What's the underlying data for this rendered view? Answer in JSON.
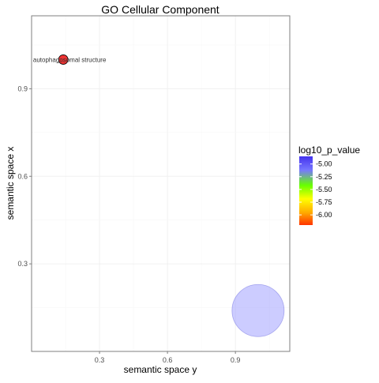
{
  "chart_data": {
    "type": "scatter",
    "title": "GO Cellular Component",
    "xlabel": "semantic space y",
    "ylabel": "semantic space x",
    "x_ticks": [
      0.3,
      0.6,
      0.9
    ],
    "y_ticks": [
      0.3,
      0.6,
      0.9
    ],
    "x_tick_labels": [
      "0.3",
      "0.6",
      "0.9"
    ],
    "y_tick_labels": [
      "0.3",
      "0.6",
      "0.9"
    ],
    "xlim": [
      0.0,
      1.14
    ],
    "ylim": [
      0.0,
      1.15
    ],
    "grid": true,
    "points": [
      {
        "x": 0.14,
        "y": 1.0,
        "log10_p_value": -6.2,
        "size": "small",
        "color": "#ee3333",
        "alpha": 1.0,
        "label": "autophagosomal structure"
      },
      {
        "x": 1.0,
        "y": 0.14,
        "log10_p_value": -4.85,
        "size": "large",
        "color": "#9999ff",
        "alpha": 0.5,
        "label": ""
      }
    ],
    "legend": {
      "title": "log10_p_value",
      "placement": "right",
      "ticks": [
        -5.0,
        -5.25,
        -5.5,
        -5.75,
        -6.0
      ],
      "tick_labels": [
        "-5.00",
        "-5.25",
        "-5.50",
        "-5.75",
        "-6.00"
      ],
      "range": [
        -6.2,
        -4.85
      ],
      "gradient_colors_top_to_bottom": [
        "#4433ee",
        "#7777ff",
        "#66ff00",
        "#ffff00",
        "#ffaa00",
        "#ff3300"
      ]
    }
  }
}
